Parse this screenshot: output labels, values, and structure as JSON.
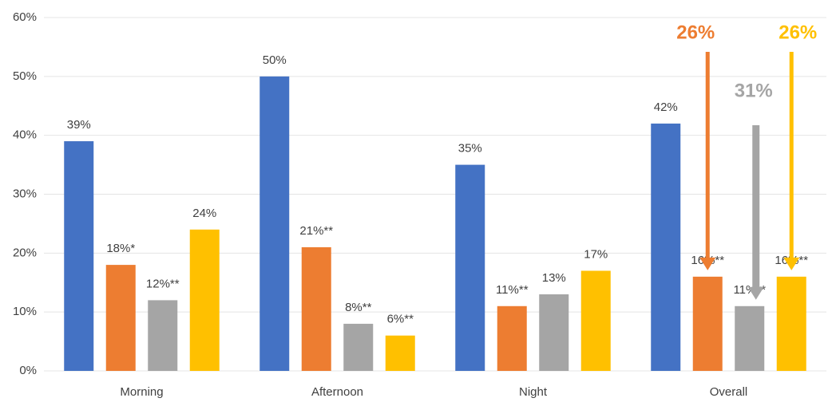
{
  "chart_data": {
    "type": "bar",
    "categories": [
      "Morning",
      "Afternoon",
      "Night",
      "Overall"
    ],
    "series": [
      {
        "color": "#4472c4",
        "values": [
          39,
          50,
          35,
          42
        ],
        "value_labels": [
          "39%",
          "50%",
          "35%",
          "42%"
        ]
      },
      {
        "color": "#ed7d31",
        "values": [
          18,
          21,
          11,
          16
        ],
        "value_labels": [
          "18%*",
          "21%**",
          "11%**",
          "16%**"
        ]
      },
      {
        "color": "#a5a5a5",
        "values": [
          12,
          8,
          13,
          11
        ],
        "value_labels": [
          "12%**",
          "8%**",
          "13%",
          "11%**"
        ]
      },
      {
        "color": "#ffc000",
        "values": [
          24,
          6,
          17,
          16
        ],
        "value_labels": [
          "24%",
          "6%**",
          "17%",
          "16%**"
        ]
      }
    ],
    "ylim": [
      0,
      60
    ],
    "yticks": [
      {
        "value": 0,
        "label": "0%"
      },
      {
        "value": 10,
        "label": "10%"
      },
      {
        "value": 20,
        "label": "20%"
      },
      {
        "value": 30,
        "label": "30%"
      },
      {
        "value": 40,
        "label": "40%"
      },
      {
        "value": 50,
        "label": "50%"
      },
      {
        "value": 60,
        "label": "60%"
      }
    ],
    "grid": true,
    "annotations": [
      {
        "text": "26%",
        "color": "#ed7d31"
      },
      {
        "text": "31%",
        "color": "#a5a5a5"
      },
      {
        "text": "26%",
        "color": "#ffc000"
      }
    ]
  }
}
